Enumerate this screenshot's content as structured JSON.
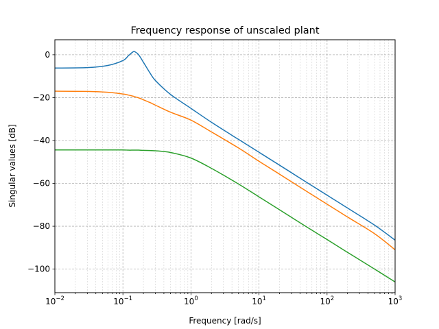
{
  "chart_data": {
    "type": "line",
    "title": "Frequency response of unscaled plant",
    "xlabel": "Frequency [rad/s]",
    "ylabel": "Singular values [dB]",
    "xscale": "log",
    "xlim": [
      0.01,
      1000
    ],
    "ylim": [
      -111,
      7
    ],
    "x_ticks": [
      {
        "base": "10",
        "exp": "−2",
        "value": 0.01
      },
      {
        "base": "10",
        "exp": "−1",
        "value": 0.1
      },
      {
        "base": "10",
        "exp": "0",
        "value": 1
      },
      {
        "base": "10",
        "exp": "1",
        "value": 10
      },
      {
        "base": "10",
        "exp": "2",
        "value": 100
      },
      {
        "base": "10",
        "exp": "3",
        "value": 1000
      }
    ],
    "y_ticks": [
      {
        "label": "0",
        "value": 0
      },
      {
        "label": "−20",
        "value": -20
      },
      {
        "label": "−40",
        "value": -40
      },
      {
        "label": "−60",
        "value": -60
      },
      {
        "label": "−80",
        "value": -80
      },
      {
        "label": "−100",
        "value": -100
      }
    ],
    "grid": "both (major and minor), dashed",
    "legend": "none",
    "x": [
      0.01,
      0.03,
      0.06,
      0.1,
      0.12,
      0.14,
      0.15,
      0.17,
      0.2,
      0.25,
      0.3,
      0.5,
      1,
      2,
      5,
      10,
      20,
      50,
      100,
      200,
      500,
      1000
    ],
    "series": [
      {
        "color": "#1f77b4",
        "values": [
          -6.2,
          -6.0,
          -5.0,
          -2.7,
          -0.5,
          1.3,
          1.4,
          0.0,
          -3.5,
          -8.5,
          -12.0,
          -18.5,
          -25.0,
          -31.5,
          -39.5,
          -45.5,
          -51.5,
          -59.5,
          -65.5,
          -71.5,
          -79.5,
          -86.5
        ]
      },
      {
        "color": "#ff7f0e",
        "values": [
          -17.0,
          -17.1,
          -17.5,
          -18.3,
          -18.8,
          -19.3,
          -19.6,
          -20.1,
          -21.0,
          -22.3,
          -23.5,
          -26.8,
          -30.5,
          -36.0,
          -43.5,
          -49.7,
          -55.7,
          -63.7,
          -69.7,
          -75.7,
          -83.5,
          -91.0
        ]
      },
      {
        "color": "#2ca02c",
        "values": [
          -44.4,
          -44.4,
          -44.4,
          -44.4,
          -44.5,
          -44.5,
          -44.5,
          -44.5,
          -44.6,
          -44.7,
          -44.8,
          -45.6,
          -48.2,
          -53.0,
          -60.3,
          -66.3,
          -72.3,
          -80.3,
          -86.2,
          -92.2,
          -100.0,
          -106.0
        ]
      }
    ]
  }
}
